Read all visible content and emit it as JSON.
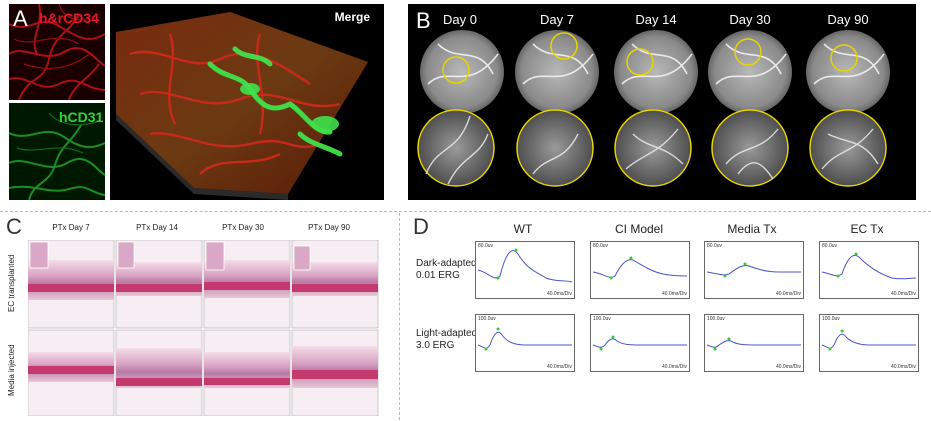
{
  "panels": {
    "a": {
      "letter": "A",
      "label_red": "h&rCD34",
      "label_green": "hCD31",
      "merge": "Merge"
    },
    "b": {
      "letter": "B",
      "days": [
        "Day 0",
        "Day 7",
        "Day 14",
        "Day 30",
        "Day 90"
      ]
    },
    "c": {
      "letter": "C",
      "columns": [
        "PTx Day 7",
        "PTx Day 14",
        "PTx Day 30",
        "PTx Day 90"
      ],
      "rows": [
        "EC transplanted",
        "Media injected"
      ]
    },
    "d": {
      "letter": "D",
      "columns": [
        "WT",
        "CI Model",
        "Media Tx",
        "EC Tx"
      ],
      "rows": [
        {
          "line1": "Dark-adapted",
          "line2": "0.01 ERG",
          "amp": "80.0uv",
          "time": "40.0ms/Div"
        },
        {
          "line1": "Light-adapted",
          "line2": "3.0 ERG",
          "amp": "100.0uv",
          "time": "40.0ms/Div"
        }
      ]
    }
  },
  "colors": {
    "red": "#d61a1a",
    "green": "#2fcf3a",
    "yellow": "#e8d400",
    "trace": "#4a55c8",
    "marker": "#33cc33"
  }
}
